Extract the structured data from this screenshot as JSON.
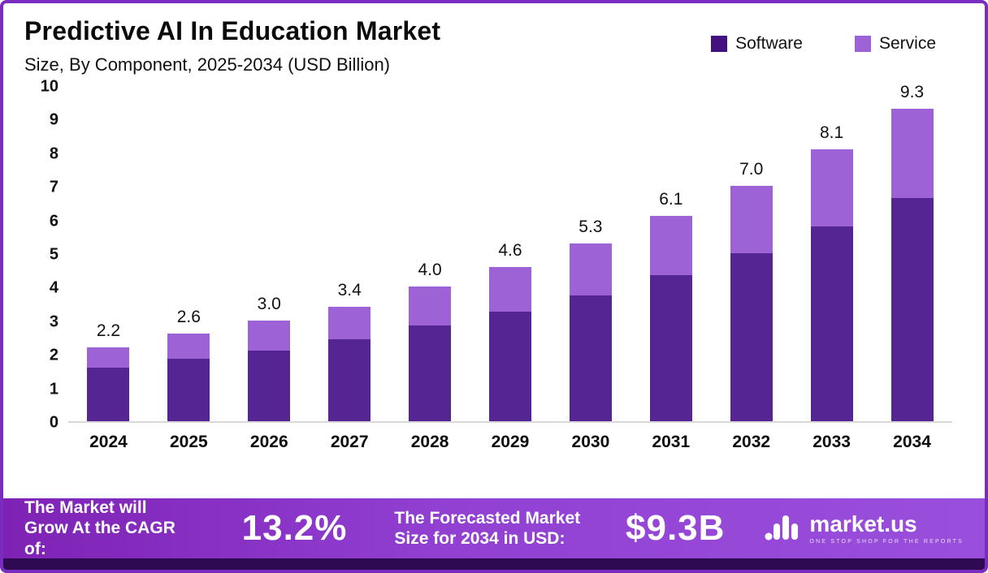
{
  "title": "Predictive AI In Education Market",
  "subtitle": "Size, By Component, 2025-2034 (USD Billion)",
  "legend": [
    {
      "label": "Software",
      "color": "#44127e"
    },
    {
      "label": "Service",
      "color": "#9c62d6"
    }
  ],
  "chart_data": {
    "type": "bar",
    "stacked": true,
    "title": "Predictive AI In Education Market Size, By Component, 2025-2034 (USD Billion)",
    "xlabel": "",
    "ylabel": "USD Billion",
    "ylim": [
      0,
      10
    ],
    "yticks": [
      0,
      1,
      2,
      3,
      4,
      5,
      6,
      7,
      8,
      9,
      10
    ],
    "grid": false,
    "legend_position": "top-right",
    "categories": [
      "2024",
      "2025",
      "2026",
      "2027",
      "2028",
      "2029",
      "2030",
      "2031",
      "2032",
      "2033",
      "2034"
    ],
    "series": [
      {
        "name": "Software",
        "color": "#552594",
        "values": [
          1.6,
          1.85,
          2.1,
          2.45,
          2.85,
          3.25,
          3.75,
          4.35,
          5.0,
          5.8,
          6.65
        ]
      },
      {
        "name": "Service",
        "color": "#9c62d6",
        "values": [
          0.6,
          0.75,
          0.9,
          0.95,
          1.15,
          1.35,
          1.55,
          1.75,
          2.0,
          2.3,
          2.65
        ]
      }
    ],
    "totals_labels": [
      "2.2",
      "2.6",
      "3.0",
      "3.4",
      "4.0",
      "4.6",
      "5.3",
      "6.1",
      "7.0",
      "8.1",
      "9.3"
    ]
  },
  "footer": {
    "cagr_label": "The Market will Grow At the CAGR of:",
    "cagr_value": "13.2%",
    "forecast_label": "The Forecasted Market Size for 2034 in USD:",
    "forecast_value": "$9.3B",
    "brand": "market.us",
    "brand_tagline": "ONE STOP SHOP FOR THE REPORTS"
  }
}
